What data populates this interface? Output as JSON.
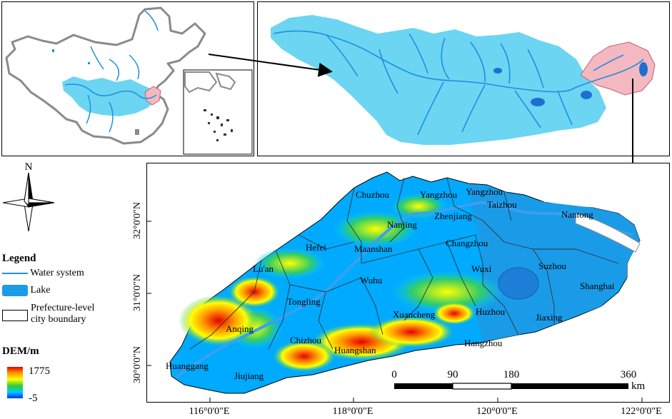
{
  "colors": {
    "basin": "#6cd5f2",
    "river": "#1f8fe0",
    "delta": "#f4b8c0",
    "lake": "#1e9be6",
    "border": "#8a8a8a"
  },
  "north_arrow": {
    "label": "N"
  },
  "legend": {
    "title": "Legend",
    "items": [
      {
        "label": "Water system",
        "icon": "line-symbol"
      },
      {
        "label": "Lake",
        "icon": "fill-symbol"
      },
      {
        "label": "Prefecture-level city boundary",
        "line1": "Prefecture-level",
        "line2": "city boundary",
        "icon": "outline-symbol"
      }
    ]
  },
  "dem": {
    "title": "DEM/m",
    "max": "1775",
    "min": "-5",
    "gradient": [
      "#e60000",
      "#ff9900",
      "#ffff00",
      "#33cc33",
      "#00ccff",
      "#0033ff"
    ]
  },
  "map": {
    "cities": [
      "Chuzhou",
      "Yangzhou",
      "Yangzhou",
      "Taizhou",
      "Nantong",
      "Zhenjiang",
      "Nanjing",
      "Changzhou",
      "Hefei",
      "Maanshan",
      "Lu'an",
      "Wuxi",
      "Suzhou",
      "Wuhu",
      "Shanghai",
      "Tongling",
      "Xuancheng",
      "Huzhou",
      "Jiaxing",
      "Anqing",
      "Chizhou",
      "Huangshan",
      "Hangzhou",
      "Huanggang",
      "Jiujiang"
    ],
    "lon_labels": [
      "116°0'0\"E",
      "118°0'0\"E",
      "120°0'0\"E",
      "122°0'0\"E"
    ],
    "lat_labels": [
      "30°0'0\"N",
      "31°0'0\"N",
      "32°0'0\"N"
    ]
  },
  "scalebar": {
    "ticks": [
      "0",
      "90",
      "180",
      "360"
    ],
    "unit": "km"
  }
}
